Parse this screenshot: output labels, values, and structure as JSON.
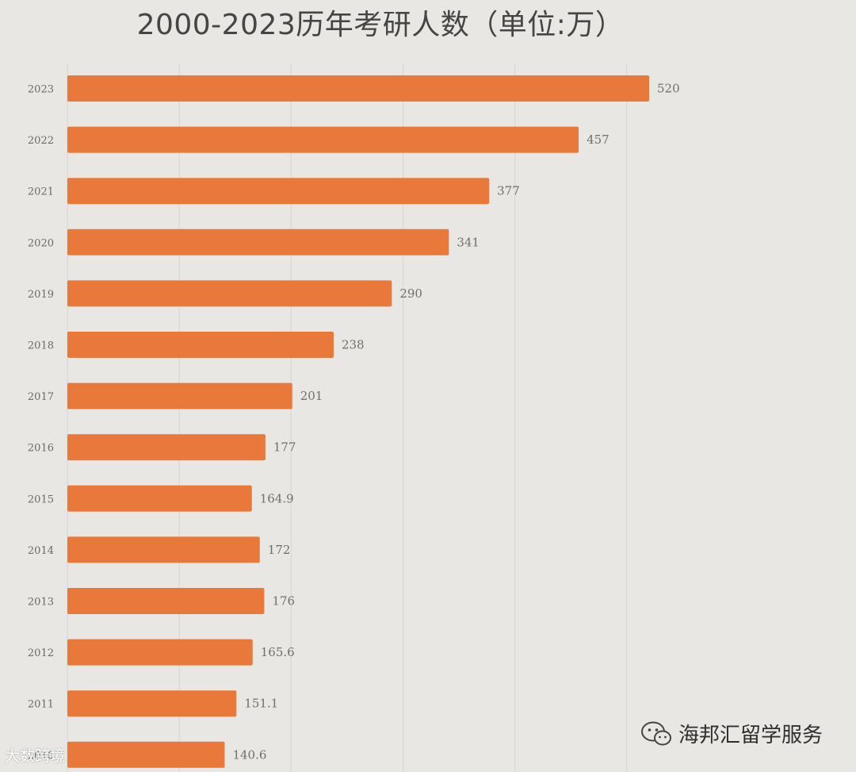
{
  "chart_data": {
    "type": "bar",
    "orientation": "horizontal",
    "title": "2000-2023历年考研人数（单位:万）",
    "categories": [
      "2023",
      "2022",
      "2021",
      "2020",
      "2019",
      "2018",
      "2017",
      "2016",
      "2015",
      "2014",
      "2013",
      "2012",
      "2011",
      "2010"
    ],
    "values": [
      520,
      457,
      377,
      341,
      290,
      238,
      201,
      177,
      164.9,
      172,
      176,
      165.6,
      151.1,
      140.6
    ],
    "value_labels": [
      "520",
      "457",
      "377",
      "341",
      "290",
      "238",
      "201",
      "177",
      "164.9",
      "172",
      "176",
      "165.6",
      "151.1",
      "140.6"
    ],
    "xlim": [
      0,
      520
    ],
    "bar_color": "#e8793a",
    "grid": true,
    "legend": "none"
  },
  "watermarks": {
    "left_text": "大数跨境",
    "right_text": "海邦汇留学服务",
    "icon": "wechat-icon"
  }
}
